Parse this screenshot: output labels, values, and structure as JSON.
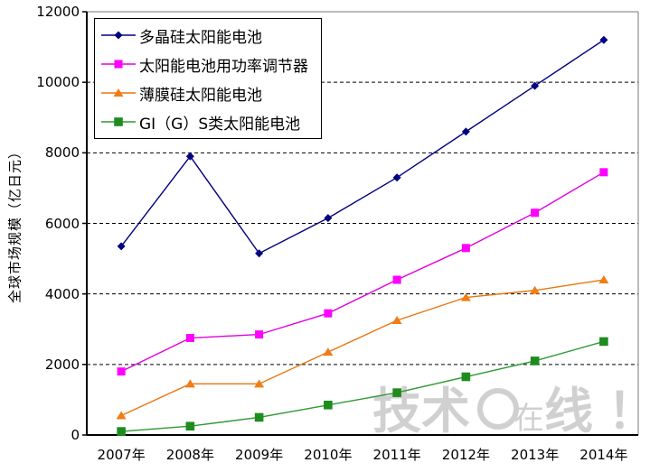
{
  "chart_data": {
    "type": "line",
    "title": "",
    "categories": [
      "2007年",
      "2008年",
      "2009年",
      "2010年",
      "2011年",
      "2012年",
      "2013年",
      "2014年"
    ],
    "series": [
      {
        "name": "多晶硅太阳能电池",
        "marker": "diamond",
        "color": "#000080",
        "line_color": "#000080",
        "values": [
          5350,
          7900,
          5150,
          6150,
          7300,
          8600,
          9900,
          11200
        ]
      },
      {
        "name": "太阳能电池用功率调节器",
        "marker": "square",
        "color": "#FF00FF",
        "line_color": "#E000E0",
        "values": [
          1800,
          2750,
          2850,
          3450,
          4400,
          5300,
          6300,
          7450
        ]
      },
      {
        "name": "薄膜硅太阳能电池",
        "marker": "triangle",
        "color": "#F07D17",
        "line_color": "#E8760F",
        "values": [
          550,
          1450,
          1450,
          2350,
          3250,
          3900,
          4100,
          4400
        ]
      },
      {
        "name": "GI（G）S类太阳能电池",
        "marker": "square",
        "color": "#1E8C1E",
        "line_color": "#2E9932",
        "values": [
          100,
          250,
          500,
          850,
          1200,
          1650,
          2100,
          2650
        ]
      }
    ],
    "xlabel": "",
    "ylabel": "全球市场规模（亿日元）",
    "ylim": [
      0,
      12000
    ],
    "y_step": 2000,
    "grid": "horizontal-dashed",
    "legend_position": "top-left"
  },
  "watermark": {
    "left": "技术",
    "mid": "在",
    "right": "线",
    "bang": "！"
  },
  "colors": {
    "grid": "#000000",
    "axis": "#000000",
    "frame_light": "#777777",
    "watermark": "#d0d0d0"
  }
}
